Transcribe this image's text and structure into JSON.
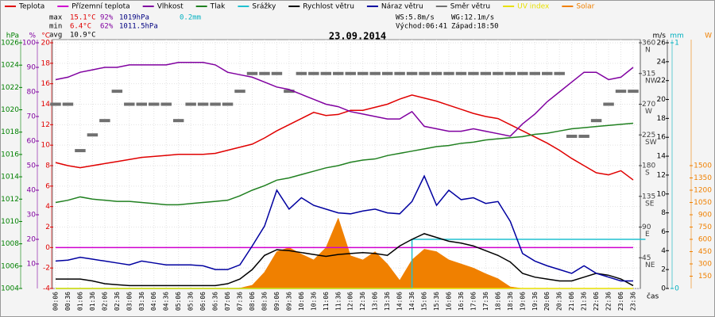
{
  "chart_data": {
    "type": "line",
    "title": "23.09.2014",
    "x_label": "čas",
    "categories": [
      "00:06",
      "00:36",
      "01:06",
      "01:36",
      "02:06",
      "02:36",
      "03:06",
      "03:36",
      "04:06",
      "04:36",
      "05:06",
      "05:36",
      "06:06",
      "06:36",
      "07:06",
      "07:36",
      "08:06",
      "08:36",
      "09:06",
      "09:36",
      "10:06",
      "10:36",
      "11:06",
      "11:36",
      "12:06",
      "12:36",
      "13:06",
      "13:36",
      "14:06",
      "14:36",
      "15:06",
      "15:36",
      "16:06",
      "16:36",
      "17:06",
      "17:36",
      "18:06",
      "18:36",
      "19:06",
      "19:36",
      "20:06",
      "20:36",
      "21:06",
      "21:36",
      "22:06",
      "22:36",
      "23:06",
      "23:36"
    ],
    "axes": [
      {
        "label": "hPa",
        "color": "#008000",
        "lim": [
          1004,
          1026
        ],
        "ticks": [
          1004,
          1006,
          1008,
          1010,
          1012,
          1014,
          1016,
          1018,
          1020,
          1022,
          1024,
          1026
        ]
      },
      {
        "label": "%",
        "color": "#8000a0",
        "lim": [
          0,
          100
        ],
        "ticks": [
          10,
          20,
          30,
          40,
          50,
          60,
          70,
          80,
          90,
          100
        ]
      },
      {
        "label": "°C",
        "color": "#e00000",
        "lim": [
          -4,
          20
        ],
        "ticks": [
          -4,
          -2,
          0,
          2,
          4,
          6,
          8,
          10,
          12,
          14,
          16,
          18,
          20
        ]
      },
      {
        "label": "m/s",
        "color": "#000000",
        "lim": [
          0,
          26
        ],
        "ticks": [
          0,
          2,
          4,
          6,
          8,
          10,
          12,
          14,
          16,
          18,
          20,
          22,
          24,
          26
        ]
      },
      {
        "label": "",
        "color": "#404040",
        "lim": [
          0,
          360
        ],
        "ticks": [
          45,
          90,
          135,
          180,
          225,
          270,
          315,
          360
        ],
        "tick_names": [
          "NE",
          "E",
          "SE",
          "S",
          "SW",
          "W",
          "NW",
          "N"
        ]
      },
      {
        "label": "mm",
        "color": "#00b0c0",
        "lim": [
          0,
          1
        ],
        "ticks": [
          0,
          1
        ]
      },
      {
        "label": "W",
        "color": "#f08000",
        "lim": [
          0,
          3000
        ],
        "ticks": [
          150,
          300,
          450,
          600,
          750,
          900,
          1050,
          1200,
          1350,
          1500
        ]
      }
    ],
    "series": [
      {
        "name": "Teplota",
        "color": "#e00000",
        "axis": 2,
        "style": "line",
        "values": [
          8.3,
          8.0,
          7.8,
          8.0,
          8.2,
          8.4,
          8.6,
          8.8,
          8.9,
          9.0,
          9.1,
          9.1,
          9.1,
          9.2,
          9.5,
          9.8,
          10.1,
          10.7,
          11.4,
          12.0,
          12.6,
          13.2,
          12.9,
          13.0,
          13.4,
          13.4,
          13.7,
          14.0,
          14.5,
          14.9,
          14.6,
          14.3,
          13.9,
          13.5,
          13.1,
          12.8,
          12.6,
          12.0,
          11.4,
          10.8,
          10.2,
          9.5,
          8.7,
          8.0,
          7.3,
          7.1,
          7.5,
          6.6
        ]
      },
      {
        "name": "Přízemní teplota",
        "color": "#d000d0",
        "axis": 2,
        "style": "line",
        "values": [
          0,
          0,
          0,
          0,
          0,
          0,
          0,
          0,
          0,
          0,
          0,
          0,
          0,
          0,
          0,
          0,
          0,
          0,
          0,
          0,
          0,
          0,
          0,
          0,
          0,
          0,
          0,
          0,
          0,
          0,
          0,
          0,
          0,
          0,
          0,
          0,
          0,
          0,
          0,
          0,
          0,
          0,
          0,
          0,
          0,
          0,
          0,
          0
        ]
      },
      {
        "name": "Vlhkost",
        "color": "#8000a0",
        "axis": 1,
        "style": "line",
        "values": [
          85,
          86,
          88,
          89,
          90,
          90,
          91,
          91,
          91,
          91,
          92,
          92,
          92,
          91,
          88,
          87,
          86,
          84,
          82,
          81,
          79,
          77,
          75,
          74,
          72,
          71,
          70,
          69,
          69,
          72,
          66,
          65,
          64,
          64,
          65,
          64,
          63,
          62,
          67,
          71,
          76,
          80,
          84,
          88,
          88,
          85,
          86,
          90
        ]
      },
      {
        "name": "Tlak",
        "color": "#208020",
        "axis": 0,
        "style": "line",
        "values": [
          1011.7,
          1011.9,
          1012.2,
          1012.0,
          1011.9,
          1011.8,
          1011.8,
          1011.7,
          1011.6,
          1011.5,
          1011.5,
          1011.6,
          1011.7,
          1011.8,
          1011.9,
          1012.3,
          1012.8,
          1013.2,
          1013.7,
          1013.9,
          1014.2,
          1014.5,
          1014.8,
          1015.0,
          1015.3,
          1015.5,
          1015.6,
          1015.9,
          1016.1,
          1016.3,
          1016.5,
          1016.7,
          1016.8,
          1017.0,
          1017.1,
          1017.3,
          1017.4,
          1017.5,
          1017.6,
          1017.8,
          1017.9,
          1018.1,
          1018.3,
          1018.4,
          1018.5,
          1018.6,
          1018.7,
          1018.8
        ]
      },
      {
        "name": "Srážky",
        "color": "#20c0d0",
        "axis": 5,
        "style": "step",
        "values": [
          0,
          0,
          0,
          0,
          0,
          0,
          0,
          0,
          0,
          0,
          0,
          0,
          0,
          0,
          0,
          0,
          0,
          0,
          0,
          0,
          0,
          0,
          0,
          0,
          0,
          0,
          0,
          0,
          0,
          0.2,
          0.2,
          0.2,
          0.2,
          0.2,
          0.2,
          0.2,
          0.2,
          0.2,
          0.2,
          0.2,
          0.2,
          0.2,
          0.2,
          0.2,
          0.2,
          0.2,
          0.2,
          0.2
        ]
      },
      {
        "name": "Rychlost větru",
        "color": "#000000",
        "axis": 3,
        "style": "line",
        "values": [
          1.0,
          1.0,
          1.0,
          0.8,
          0.5,
          0.4,
          0.3,
          0.3,
          0.3,
          0.3,
          0.3,
          0.3,
          0.3,
          0.3,
          0.5,
          1.0,
          2.0,
          3.5,
          4.1,
          4.0,
          3.8,
          3.6,
          3.4,
          3.6,
          3.7,
          3.8,
          3.7,
          3.5,
          4.5,
          5.2,
          5.8,
          5.4,
          5.0,
          4.8,
          4.5,
          4.0,
          3.5,
          2.8,
          1.6,
          1.2,
          1.0,
          0.8,
          0.8,
          1.2,
          1.6,
          1.4,
          1.0,
          0.3
        ]
      },
      {
        "name": "Náraz větru",
        "color": "#0000a0",
        "axis": 3,
        "style": "line",
        "values": [
          2.9,
          3.0,
          3.3,
          3.1,
          2.9,
          2.7,
          2.5,
          2.9,
          2.7,
          2.5,
          2.5,
          2.5,
          2.4,
          2.0,
          2.0,
          2.5,
          4.5,
          6.6,
          10.4,
          8.4,
          9.6,
          8.8,
          8.4,
          8.0,
          7.9,
          8.2,
          8.4,
          8.0,
          7.9,
          9.2,
          11.9,
          8.8,
          10.4,
          9.4,
          9.6,
          9.0,
          9.2,
          7.1,
          3.7,
          2.9,
          2.4,
          2.0,
          1.6,
          2.4,
          1.6,
          1.2,
          0.8,
          0.8
        ]
      },
      {
        "name": "Směr větru",
        "color": "#707070",
        "axis": 4,
        "style": "dash",
        "values": [
          270,
          270,
          202,
          225,
          246,
          289,
          270,
          270,
          270,
          270,
          246,
          270,
          270,
          270,
          270,
          289,
          315,
          315,
          315,
          289,
          315,
          315,
          315,
          315,
          315,
          315,
          315,
          315,
          315,
          315,
          315,
          315,
          315,
          315,
          315,
          315,
          315,
          315,
          315,
          315,
          315,
          315,
          223,
          223,
          246,
          270,
          289,
          289
        ]
      },
      {
        "name": "UV index",
        "color": "#e8e000",
        "axis": 3,
        "style": "line",
        "values": [
          0,
          0,
          0,
          0,
          0,
          0,
          0,
          0,
          0,
          0,
          0,
          0,
          0,
          0,
          0,
          0,
          0,
          0,
          0,
          0,
          0,
          0,
          0,
          0,
          0,
          0,
          0,
          0,
          0,
          0,
          0,
          0,
          0,
          0,
          0,
          0,
          0,
          0,
          0,
          0,
          0,
          0,
          0,
          0,
          0,
          0,
          0,
          0
        ]
      },
      {
        "name": "Solar",
        "color": "#f08000",
        "axis": 6,
        "style": "area",
        "values": [
          0,
          0,
          0,
          0,
          0,
          0,
          0,
          0,
          0,
          0,
          0,
          0,
          0,
          0,
          0,
          5,
          40,
          200,
          450,
          500,
          420,
          350,
          500,
          860,
          400,
          350,
          450,
          300,
          100,
          350,
          480,
          450,
          350,
          300,
          250,
          180,
          120,
          20,
          0,
          0,
          0,
          0,
          0,
          0,
          0,
          0,
          0,
          0
        ]
      }
    ],
    "stats": [
      {
        "label": "max",
        "items": [
          "15.1°C",
          "92%",
          "1019hPa",
          "0.2mm"
        ],
        "item_colors": [
          "#e00000",
          "#8000a0",
          "#000080",
          "#00b0c0"
        ]
      },
      {
        "label": "min",
        "items": [
          "6.4°C",
          "62%",
          "1011.5hPa"
        ],
        "item_colors": [
          "#e00000",
          "#8000a0",
          "#000080"
        ]
      },
      {
        "label": "avg",
        "items": [
          "10.9°C"
        ],
        "item_colors": [
          "#000000"
        ]
      }
    ],
    "info": [
      "WS:5.8m/s",
      "WG:12.1m/s",
      "Východ:06:41",
      "Západ:18:50"
    ],
    "grid": true
  }
}
